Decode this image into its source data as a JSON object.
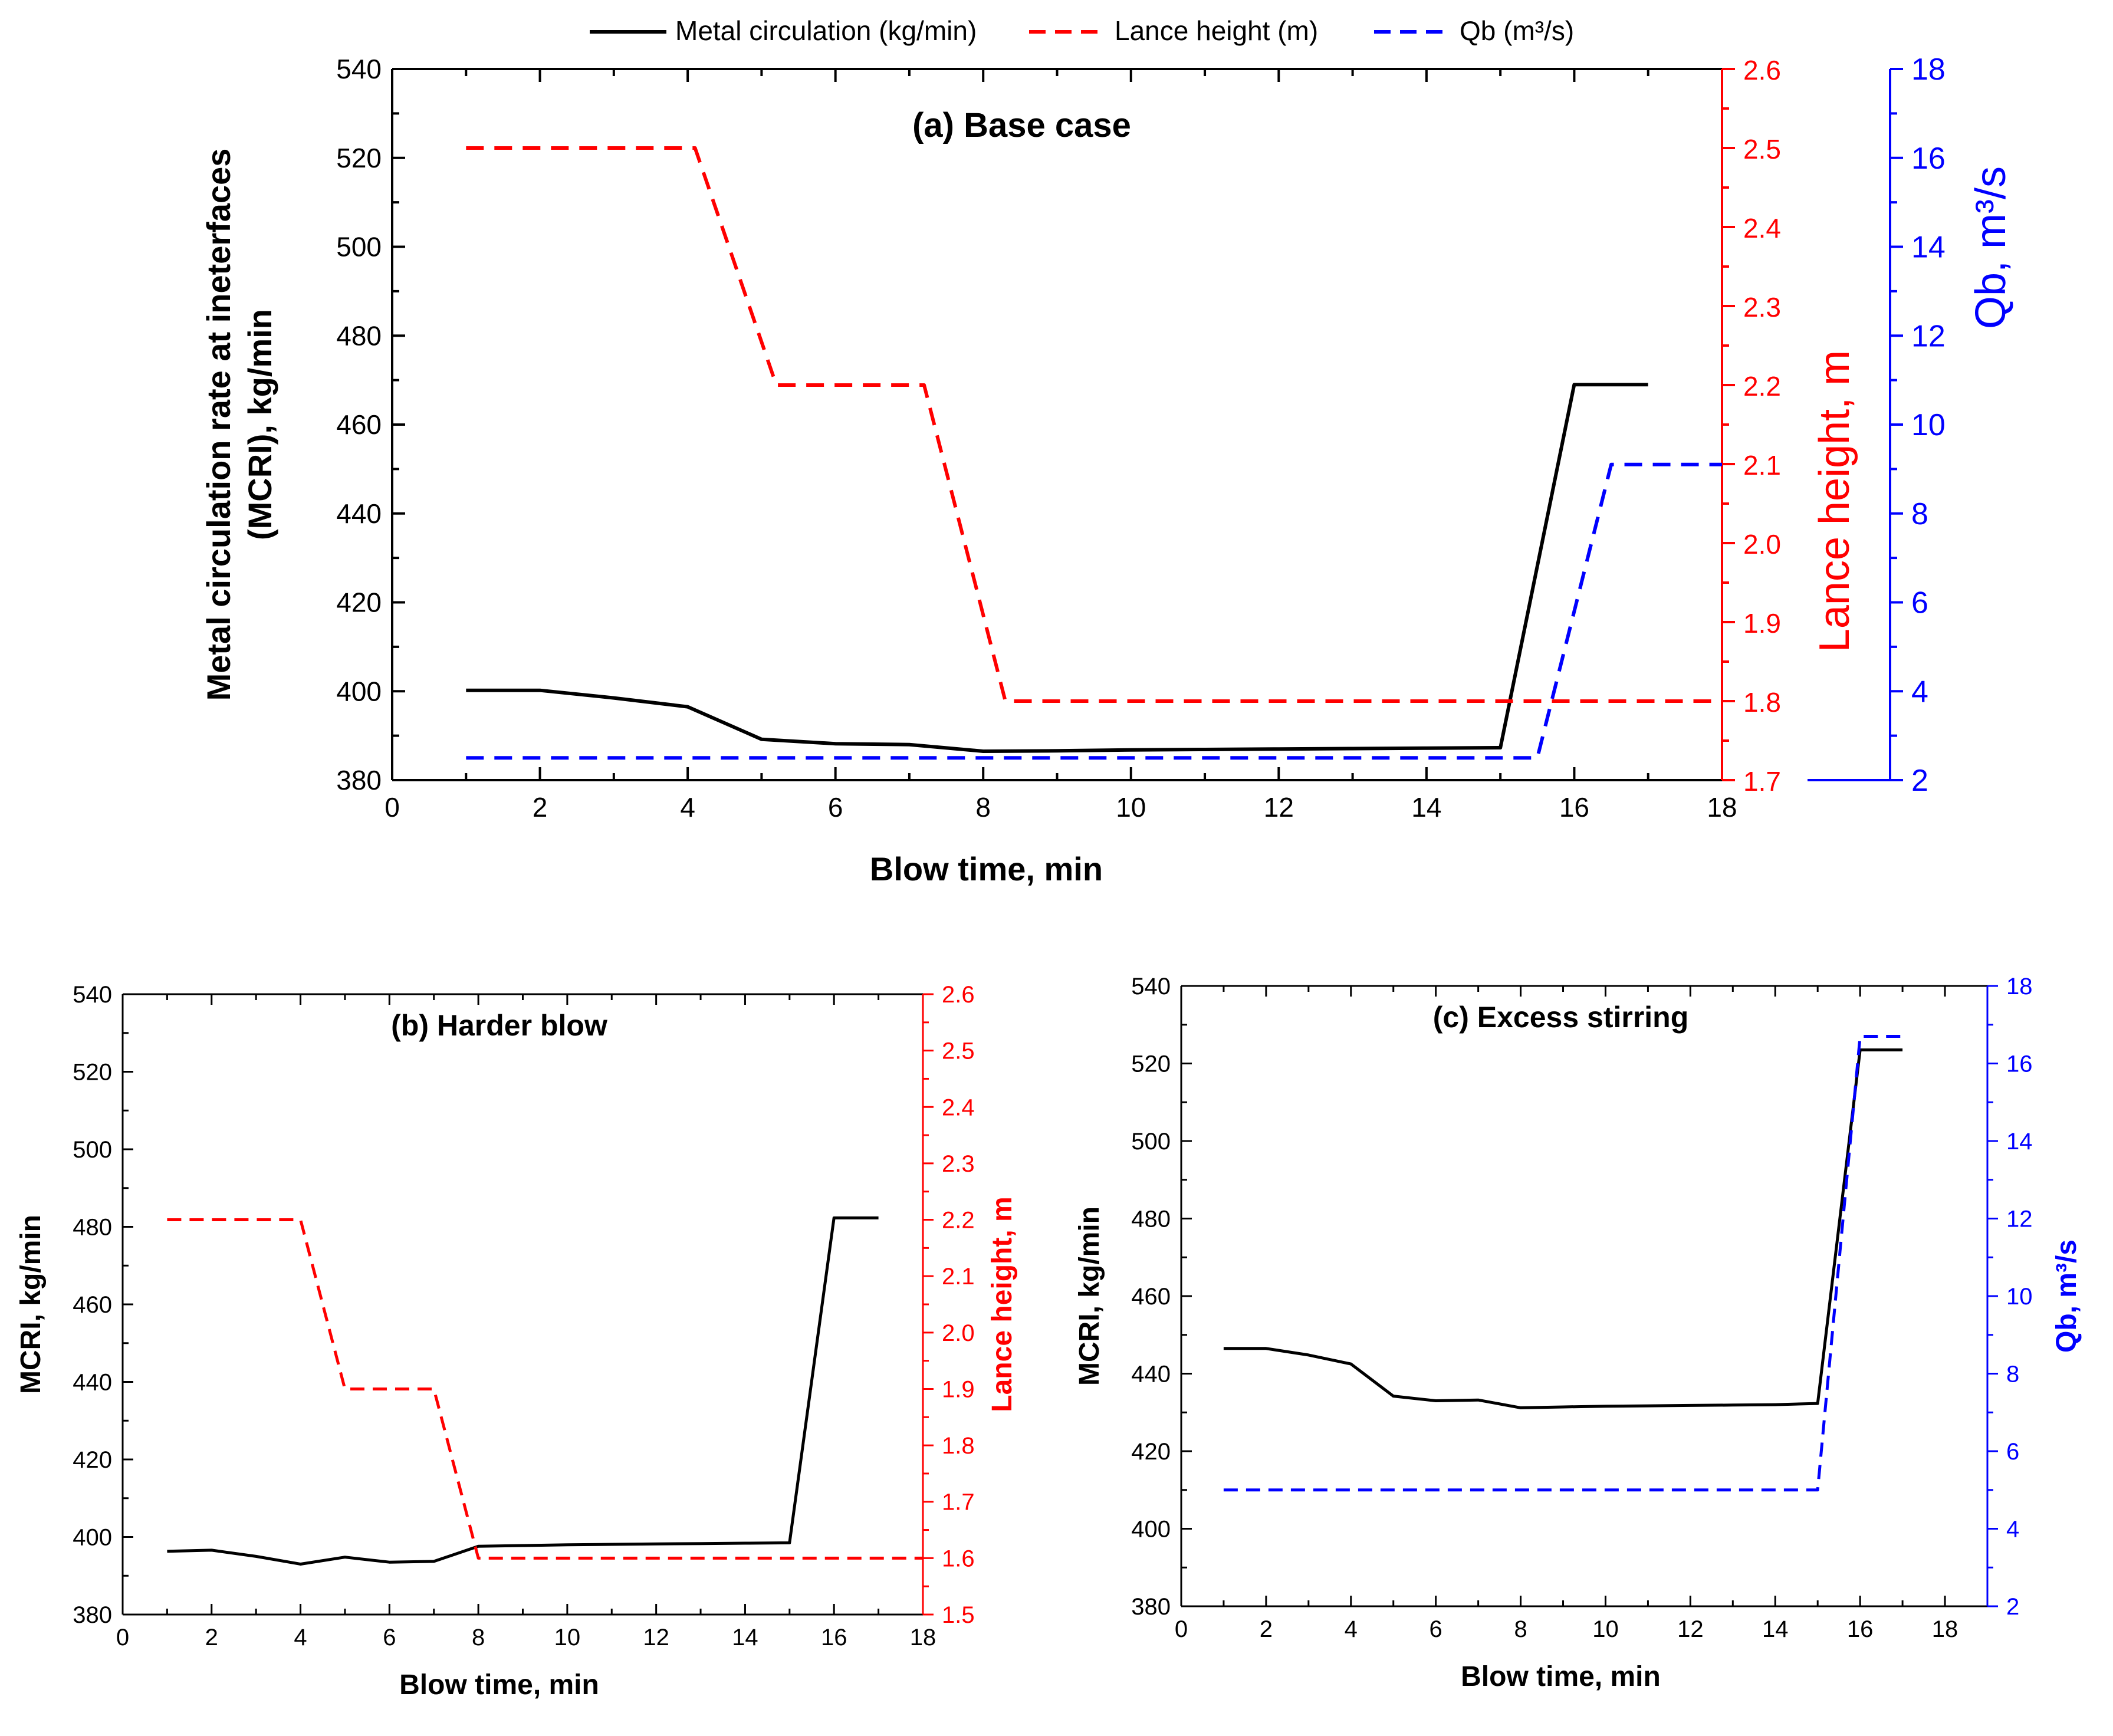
{
  "colors": {
    "metal": "#000000",
    "lance": "#ff0000",
    "qb": "#0000ff"
  },
  "legend": {
    "metal": "Metal circulation (kg/min)",
    "lance": "Lance height (m)",
    "qb": "Qb (m³/s)"
  },
  "chart_data": [
    {
      "id": "a",
      "type": "line",
      "title": "(a) Base case",
      "xlabel": "Blow time, min",
      "ylabel_lines": [
        "Metal circulation rate at ineterfaces",
        "(MCRI), kg/min"
      ],
      "y2label": "Lance height, m",
      "y3label": "Qb, m³/s",
      "xlim": [
        0,
        18
      ],
      "xticks": [
        0,
        2,
        4,
        6,
        8,
        10,
        12,
        14,
        16,
        18
      ],
      "ylim": [
        380,
        540
      ],
      "yticks": [
        380,
        400,
        420,
        440,
        460,
        480,
        500,
        520,
        540
      ],
      "y2lim": [
        1.7,
        2.6
      ],
      "y2ticks": [
        "1.7",
        "1.8",
        "1.9",
        "2.0",
        "2.1",
        "2.2",
        "2.3",
        "2.4",
        "2.5",
        "2.6"
      ],
      "y3lim": [
        2,
        18
      ],
      "y3ticks": [
        2,
        4,
        6,
        8,
        10,
        12,
        14,
        16,
        18
      ],
      "series": [
        {
          "name": "Metal circulation",
          "axis": "y",
          "style": "solid",
          "x": [
            1,
            2,
            3,
            4,
            5,
            6,
            7,
            8,
            9,
            10,
            11,
            12,
            13,
            14,
            15,
            16,
            17
          ],
          "y": [
            400.2,
            400.2,
            398.5,
            396.5,
            389.2,
            388.2,
            388.0,
            386.5,
            386.6,
            386.8,
            386.9,
            387.0,
            387.1,
            387.2,
            387.3,
            469,
            469
          ]
        },
        {
          "name": "Lance height",
          "axis": "y2",
          "style": "dashed",
          "x": [
            1,
            4.1,
            5.2,
            7.2,
            8.3,
            18
          ],
          "y": [
            2.5,
            2.5,
            2.2,
            2.2,
            1.8,
            1.8
          ]
        },
        {
          "name": "Qb",
          "axis": "y3",
          "style": "dashed",
          "x": [
            1,
            15.5,
            16.5,
            18
          ],
          "y": [
            2.5,
            2.5,
            9.1,
            9.1
          ]
        }
      ]
    },
    {
      "id": "b",
      "type": "line",
      "title": "(b) Harder blow",
      "xlabel": "Blow time, min",
      "ylabel": "MCRI, kg/min",
      "y2label": "Lance height, m",
      "xlim": [
        0,
        18
      ],
      "xticks": [
        0,
        2,
        4,
        6,
        8,
        10,
        12,
        14,
        16,
        18
      ],
      "ylim": [
        380,
        540
      ],
      "yticks": [
        380,
        400,
        420,
        440,
        460,
        480,
        500,
        520,
        540
      ],
      "y2lim": [
        1.5,
        2.6
      ],
      "y2ticks": [
        "1.5",
        "1.6",
        "1.7",
        "1.8",
        "1.9",
        "2.0",
        "2.1",
        "2.2",
        "2.3",
        "2.4",
        "2.5",
        "2.6"
      ],
      "series": [
        {
          "name": "Metal circulation",
          "axis": "y",
          "style": "solid",
          "x": [
            1,
            2,
            3,
            4,
            5,
            6,
            7,
            8,
            9,
            10,
            11,
            12,
            13,
            14,
            15,
            16,
            17
          ],
          "y": [
            396.3,
            396.6,
            395.0,
            393.0,
            394.8,
            393.5,
            393.7,
            397.6,
            397.8,
            398.0,
            398.1,
            398.2,
            398.3,
            398.4,
            398.5,
            482.3,
            482.3
          ]
        },
        {
          "name": "Lance height",
          "axis": "y2",
          "style": "dashed",
          "x": [
            1,
            4,
            5,
            7,
            8,
            18
          ],
          "y": [
            2.2,
            2.2,
            1.9,
            1.9,
            1.6,
            1.6
          ]
        }
      ]
    },
    {
      "id": "c",
      "type": "line",
      "title": "(c) Excess stirring",
      "xlabel": "Blow time, min",
      "ylabel": "MCRI, kg/min",
      "y3label": "Qb, m³/s",
      "xlim": [
        0,
        19
      ],
      "xticks": [
        0,
        2,
        4,
        6,
        8,
        10,
        12,
        14,
        16,
        18
      ],
      "ylim": [
        380,
        540
      ],
      "yticks": [
        380,
        400,
        420,
        440,
        460,
        480,
        500,
        520,
        540
      ],
      "y3lim": [
        2,
        18
      ],
      "y3ticks": [
        2,
        4,
        6,
        8,
        10,
        12,
        14,
        16,
        18
      ],
      "series": [
        {
          "name": "Metal circulation",
          "axis": "y",
          "style": "solid",
          "x": [
            1,
            2,
            3,
            4,
            5,
            6,
            7,
            8,
            9,
            10,
            11,
            12,
            13,
            14,
            15,
            16,
            17
          ],
          "y": [
            446.5,
            446.5,
            444.8,
            442.5,
            434.2,
            433.0,
            433.2,
            431.2,
            431.4,
            431.6,
            431.7,
            431.8,
            431.9,
            432.0,
            432.3,
            523.5,
            523.5
          ]
        },
        {
          "name": "Qb",
          "axis": "y3",
          "style": "dashed",
          "x": [
            1,
            15,
            16,
            17
          ],
          "y": [
            5,
            5,
            16.7,
            16.7
          ]
        }
      ]
    }
  ]
}
